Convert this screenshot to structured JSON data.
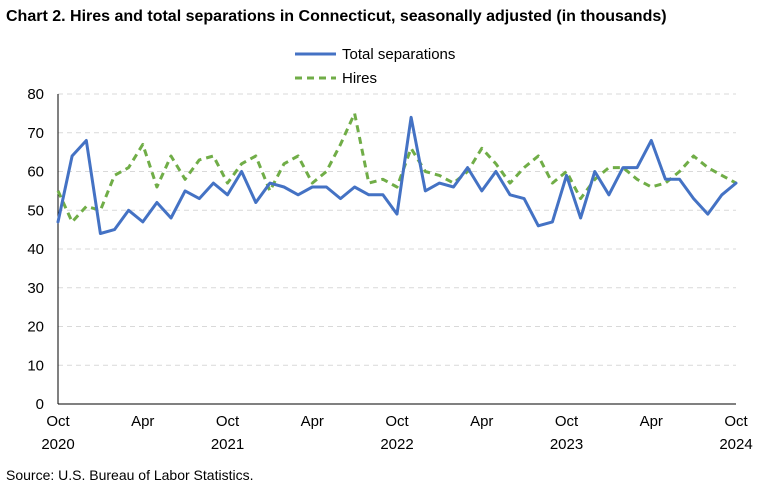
{
  "chart_data": {
    "type": "line",
    "title": "Chart 2. Hires and total separations in Connecticut, seasonally adjusted (in thousands)",
    "source": "Source: U.S. Bureau of Labor Statistics.",
    "ylim": [
      0,
      80
    ],
    "yticks": [
      0,
      10,
      20,
      30,
      40,
      50,
      60,
      70,
      80
    ],
    "grid": "horizontal dashed",
    "legend_position": "top-center",
    "x": [
      "2020-10",
      "2020-11",
      "2020-12",
      "2021-01",
      "2021-02",
      "2021-03",
      "2021-04",
      "2021-05",
      "2021-06",
      "2021-07",
      "2021-08",
      "2021-09",
      "2021-10",
      "2021-11",
      "2021-12",
      "2022-01",
      "2022-02",
      "2022-03",
      "2022-04",
      "2022-05",
      "2022-06",
      "2022-07",
      "2022-08",
      "2022-09",
      "2022-10",
      "2022-11",
      "2022-12",
      "2023-01",
      "2023-02",
      "2023-03",
      "2023-04",
      "2023-05",
      "2023-06",
      "2023-07",
      "2023-08",
      "2023-09",
      "2023-10",
      "2023-11",
      "2023-12",
      "2024-01",
      "2024-02",
      "2024-03",
      "2024-04",
      "2024-05",
      "2024-06",
      "2024-07",
      "2024-08",
      "2024-09",
      "2024-10"
    ],
    "xticks": [
      {
        "month": "Oct",
        "year": "2020"
      },
      {
        "month": "Apr",
        "year": ""
      },
      {
        "month": "Oct",
        "year": "2021"
      },
      {
        "month": "Apr",
        "year": ""
      },
      {
        "month": "Oct",
        "year": "2022"
      },
      {
        "month": "Apr",
        "year": ""
      },
      {
        "month": "Oct",
        "year": "2023"
      },
      {
        "month": "Apr",
        "year": ""
      },
      {
        "month": "Oct",
        "year": "2024"
      }
    ],
    "series": [
      {
        "name": "Total separations",
        "color": "#4472C4",
        "dash": "solid",
        "values": [
          47,
          64,
          68,
          44,
          45,
          50,
          47,
          52,
          48,
          55,
          53,
          57,
          54,
          60,
          52,
          57,
          56,
          54,
          56,
          56,
          53,
          56,
          54,
          54,
          49,
          74,
          55,
          57,
          56,
          61,
          55,
          60,
          54,
          53,
          46,
          47,
          59,
          48,
          60,
          54,
          61,
          61,
          68,
          58,
          58,
          53,
          49,
          54,
          57
        ]
      },
      {
        "name": "Hires",
        "color": "#70AD47",
        "dash": "dashed",
        "values": [
          55,
          47,
          51,
          50,
          59,
          61,
          67,
          56,
          64,
          58,
          63,
          64,
          57,
          62,
          64,
          55,
          62,
          64,
          57,
          60,
          67,
          75,
          57,
          58,
          56,
          66,
          60,
          59,
          57,
          60,
          66,
          62,
          57,
          61,
          64,
          57,
          60,
          53,
          58,
          61,
          61,
          58,
          56,
          57,
          60,
          64,
          61,
          59,
          57
        ]
      }
    ]
  }
}
